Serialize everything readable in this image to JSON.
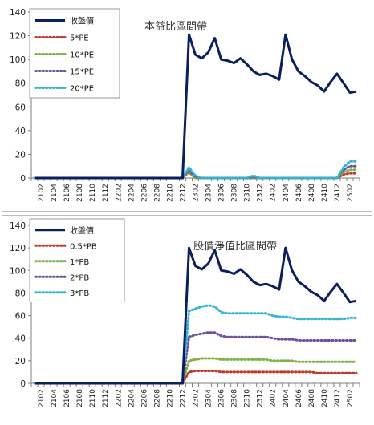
{
  "chart_data": [
    {
      "type": "line",
      "title": "本益比區間帶",
      "xlabel": "",
      "ylabel": "",
      "ylim": [
        0,
        140
      ],
      "yticks": [
        0,
        20,
        40,
        60,
        80,
        100,
        120,
        140
      ],
      "grid": false,
      "legend_position": "top-left",
      "x": [
        "2101",
        "2102",
        "2103",
        "2104",
        "2105",
        "2106",
        "2107",
        "2108",
        "2109",
        "2110",
        "2111",
        "2112",
        "2201",
        "2202",
        "2203",
        "2204",
        "2205",
        "2206",
        "2207",
        "2208",
        "2209",
        "2210",
        "2211",
        "2212",
        "2301",
        "2302",
        "2303",
        "2304",
        "2305",
        "2306",
        "2307",
        "2308",
        "2309",
        "2310",
        "2311",
        "2312",
        "2401",
        "2402",
        "2403",
        "2404",
        "2405",
        "2406",
        "2407",
        "2408",
        "2409",
        "2410",
        "2411",
        "2412",
        "2501",
        "2502",
        "2503"
      ],
      "xtick_labels": [
        "2102",
        "2104",
        "2106",
        "2108",
        "2110",
        "2112",
        "2202",
        "2204",
        "2206",
        "2208",
        "2210",
        "2212",
        "2302",
        "2304",
        "2306",
        "2308",
        "2310",
        "2312",
        "2402",
        "2404",
        "2406",
        "2408",
        "2410",
        "2412",
        "2502"
      ],
      "series": [
        {
          "name": "收盤價",
          "color": "#0b1f5e",
          "style": "solid",
          "values": [
            0,
            0,
            0,
            0,
            0,
            0,
            0,
            0,
            0,
            0,
            0,
            0,
            0,
            0,
            0,
            0,
            0,
            0,
            0,
            0,
            0,
            0,
            0,
            0,
            121,
            104,
            101,
            106,
            118,
            100,
            99,
            97,
            101,
            96,
            90,
            87,
            88,
            86,
            83,
            121,
            100,
            90,
            86,
            81,
            78,
            73,
            81,
            88,
            80,
            72,
            73
          ]
        },
        {
          "name": "5*PE",
          "color": "#c0392b",
          "style": "dotted",
          "values": [
            0,
            0,
            0,
            0,
            0,
            0,
            0,
            0,
            0,
            0,
            0,
            0,
            0,
            0,
            0,
            0,
            0,
            0,
            0,
            0,
            0,
            0,
            0,
            0,
            5,
            0,
            0,
            0,
            0,
            0,
            0,
            0,
            0,
            0,
            0,
            0,
            0,
            0,
            0,
            0,
            0,
            0,
            0,
            0,
            0,
            0,
            0,
            0,
            3,
            4,
            4
          ]
        },
        {
          "name": "10*PE",
          "color": "#7cb342",
          "style": "dotted",
          "values": [
            0,
            0,
            0,
            0,
            0,
            0,
            0,
            0,
            0,
            0,
            0,
            0,
            0,
            0,
            0,
            0,
            0,
            0,
            0,
            0,
            0,
            0,
            0,
            0,
            6,
            0,
            0,
            0,
            0,
            0,
            0,
            0,
            0,
            0,
            0,
            0,
            0,
            0,
            0,
            0,
            0,
            0,
            0,
            0,
            0,
            0,
            0,
            0,
            5,
            7,
            7
          ]
        },
        {
          "name": "15*PE",
          "color": "#6a4fa3",
          "style": "dotted",
          "values": [
            0,
            0,
            0,
            0,
            0,
            0,
            0,
            0,
            0,
            0,
            0,
            0,
            0,
            0,
            0,
            0,
            0,
            0,
            0,
            0,
            0,
            0,
            0,
            0,
            7,
            1,
            0,
            0,
            0,
            0,
            0,
            0,
            0,
            0,
            1,
            0,
            0,
            0,
            0,
            0,
            0,
            0,
            0,
            0,
            0,
            0,
            0,
            0,
            7,
            10,
            10
          ]
        },
        {
          "name": "20*PE",
          "color": "#33b5d4",
          "style": "dotted",
          "values": [
            0,
            0,
            0,
            0,
            0,
            0,
            0,
            0,
            0,
            0,
            0,
            0,
            0,
            0,
            0,
            0,
            0,
            0,
            0,
            0,
            0,
            0,
            0,
            0,
            9,
            2,
            0,
            0,
            0,
            0,
            0,
            0,
            0,
            0,
            2,
            0,
            0,
            0,
            0,
            0,
            0,
            0,
            0,
            0,
            0,
            0,
            0,
            0,
            9,
            14,
            14
          ]
        }
      ]
    },
    {
      "type": "line",
      "title": "股價淨值比區間帶",
      "xlabel": "",
      "ylabel": "",
      "ylim": [
        0,
        140
      ],
      "yticks": [
        0,
        20,
        40,
        60,
        80,
        100,
        120,
        140
      ],
      "grid": false,
      "legend_position": "top-left",
      "x": [
        "2101",
        "2102",
        "2103",
        "2104",
        "2105",
        "2106",
        "2107",
        "2108",
        "2109",
        "2110",
        "2111",
        "2112",
        "2201",
        "2202",
        "2203",
        "2204",
        "2205",
        "2206",
        "2207",
        "2208",
        "2209",
        "2210",
        "2211",
        "2212",
        "2301",
        "2302",
        "2303",
        "2304",
        "2305",
        "2306",
        "2307",
        "2308",
        "2309",
        "2310",
        "2311",
        "2312",
        "2401",
        "2402",
        "2403",
        "2404",
        "2405",
        "2406",
        "2407",
        "2408",
        "2409",
        "2410",
        "2411",
        "2412",
        "2501",
        "2502",
        "2503"
      ],
      "xtick_labels": [
        "2102",
        "2104",
        "2106",
        "2108",
        "2110",
        "2112",
        "2202",
        "2204",
        "2206",
        "2208",
        "2210",
        "2212",
        "2302",
        "2304",
        "2306",
        "2308",
        "2310",
        "2312",
        "2402",
        "2404",
        "2406",
        "2408",
        "2410",
        "2412",
        "2502"
      ],
      "series": [
        {
          "name": "收盤價",
          "color": "#0b1f5e",
          "style": "solid",
          "values": [
            0,
            0,
            0,
            0,
            0,
            0,
            0,
            0,
            0,
            0,
            0,
            0,
            0,
            0,
            0,
            0,
            0,
            0,
            0,
            0,
            0,
            0,
            0,
            0,
            120,
            104,
            101,
            106,
            118,
            100,
            99,
            97,
            101,
            96,
            90,
            87,
            88,
            86,
            83,
            120,
            100,
            90,
            86,
            81,
            78,
            73,
            81,
            88,
            80,
            72,
            73
          ]
        },
        {
          "name": "0.5*PB",
          "color": "#c0392b",
          "style": "dotted",
          "values": [
            0,
            0,
            0,
            0,
            0,
            0,
            0,
            0,
            0,
            0,
            0,
            0,
            0,
            0,
            0,
            0,
            0,
            0,
            0,
            0,
            0,
            0,
            0,
            0,
            10,
            11,
            11,
            11,
            11,
            10,
            10,
            10,
            10,
            10,
            10,
            10,
            10,
            10,
            10,
            10,
            10,
            10,
            10,
            10,
            9,
            9,
            9,
            9,
            9,
            9,
            9
          ]
        },
        {
          "name": "1*PB",
          "color": "#7cb342",
          "style": "dotted",
          "values": [
            0,
            0,
            0,
            0,
            0,
            0,
            0,
            0,
            0,
            0,
            0,
            0,
            0,
            0,
            0,
            0,
            0,
            0,
            0,
            0,
            0,
            0,
            0,
            0,
            20,
            21,
            22,
            22,
            22,
            21,
            21,
            21,
            21,
            21,
            21,
            21,
            21,
            20,
            20,
            20,
            20,
            19,
            19,
            19,
            19,
            19,
            19,
            19,
            19,
            19,
            19
          ]
        },
        {
          "name": "2*PB",
          "color": "#6a4fa3",
          "style": "dotted",
          "values": [
            0,
            0,
            0,
            0,
            0,
            0,
            0,
            0,
            0,
            0,
            0,
            0,
            0,
            0,
            0,
            0,
            0,
            0,
            0,
            0,
            0,
            0,
            0,
            0,
            41,
            43,
            44,
            45,
            45,
            42,
            41,
            41,
            41,
            41,
            41,
            41,
            41,
            40,
            39,
            39,
            39,
            38,
            38,
            38,
            38,
            38,
            38,
            38,
            38,
            38,
            38
          ]
        },
        {
          "name": "3*PB",
          "color": "#33b5d4",
          "style": "dotted",
          "values": [
            0,
            0,
            0,
            0,
            0,
            0,
            0,
            0,
            0,
            0,
            0,
            0,
            0,
            0,
            0,
            0,
            0,
            0,
            0,
            0,
            0,
            0,
            0,
            0,
            64,
            66,
            68,
            69,
            68,
            63,
            62,
            62,
            62,
            62,
            62,
            62,
            62,
            60,
            59,
            59,
            58,
            57,
            57,
            57,
            57,
            57,
            57,
            57,
            57,
            58,
            58
          ]
        }
      ]
    }
  ]
}
